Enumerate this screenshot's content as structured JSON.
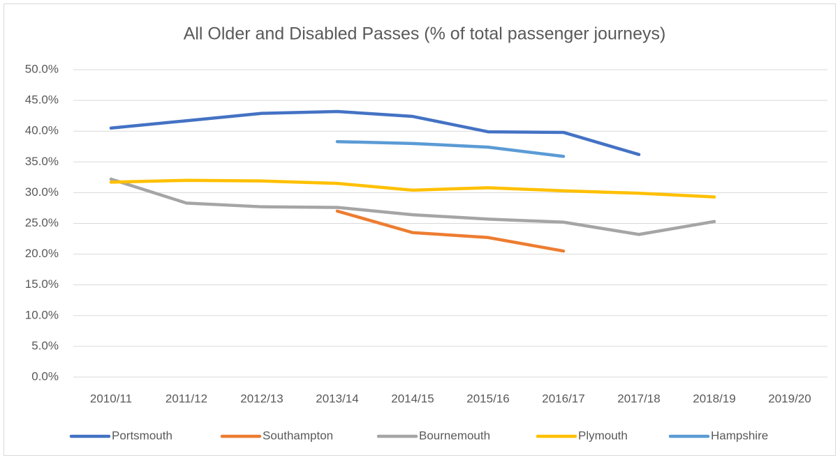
{
  "chart_data": {
    "type": "line",
    "title": "All Older and Disabled Passes (% of total passenger journeys)",
    "categories": [
      "2010/11",
      "2011/12",
      "2012/13",
      "2013/14",
      "2014/15",
      "2015/16",
      "2016/17",
      "2017/18",
      "2018/19",
      "2019/20"
    ],
    "series": [
      {
        "name": "Portsmouth",
        "color": "#4472c4",
        "values": [
          40.5,
          41.7,
          42.9,
          43.2,
          42.4,
          39.9,
          39.8,
          36.2,
          null,
          null
        ]
      },
      {
        "name": "Southampton",
        "color": "#ed7d31",
        "values": [
          null,
          null,
          null,
          27.0,
          23.5,
          22.7,
          20.5,
          null,
          null,
          null
        ]
      },
      {
        "name": "Bournemouth",
        "color": "#a5a5a5",
        "values": [
          32.2,
          28.3,
          27.7,
          27.6,
          26.4,
          25.7,
          25.2,
          23.2,
          25.3,
          null
        ]
      },
      {
        "name": "Plymouth",
        "color": "#ffc000",
        "values": [
          31.7,
          32.0,
          31.9,
          31.5,
          30.4,
          30.8,
          30.3,
          29.9,
          29.3,
          null
        ]
      },
      {
        "name": "Hampshire",
        "color": "#5b9bd5",
        "values": [
          null,
          null,
          null,
          38.3,
          38.0,
          37.4,
          35.9,
          null,
          null,
          null
        ]
      }
    ],
    "ylim": [
      0,
      50
    ],
    "yticks": [
      {
        "value": 0,
        "label": "0.0%"
      },
      {
        "value": 5,
        "label": "5.0%"
      },
      {
        "value": 10,
        "label": "10.0%"
      },
      {
        "value": 15,
        "label": "15.0%"
      },
      {
        "value": 20,
        "label": "20.0%"
      },
      {
        "value": 25,
        "label": "25.0%"
      },
      {
        "value": 30,
        "label": "30.0%"
      },
      {
        "value": 35,
        "label": "35.0%"
      },
      {
        "value": 40,
        "label": "40.0%"
      },
      {
        "value": 45,
        "label": "45.0%"
      },
      {
        "value": 50,
        "label": "50.0%"
      }
    ],
    "grid": true,
    "legend": "bottom"
  }
}
